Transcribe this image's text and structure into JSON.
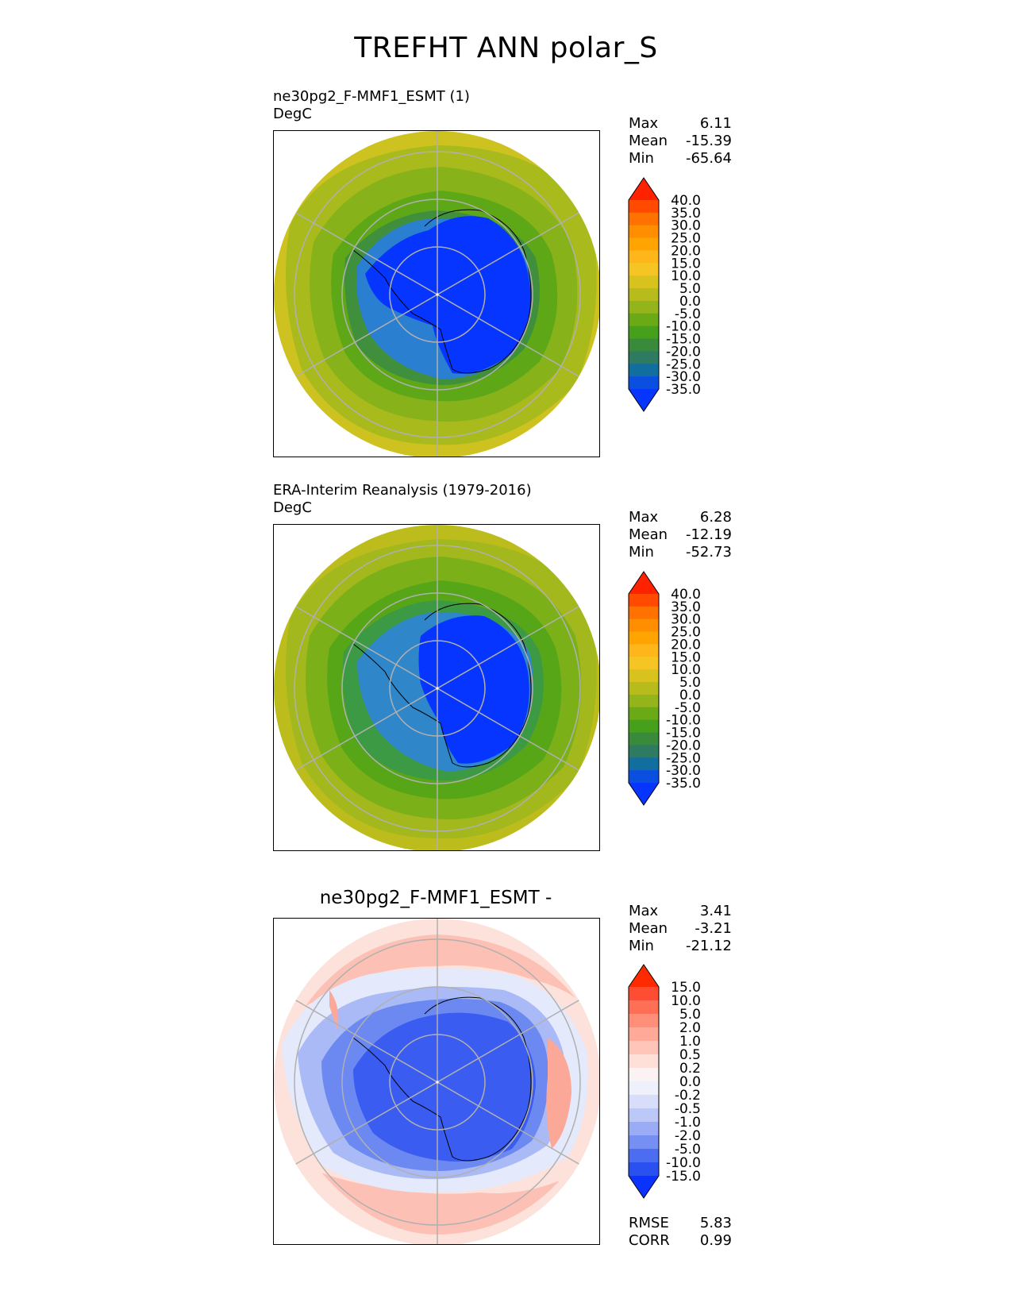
{
  "figure_title": "TREFHT ANN polar_S",
  "panels": [
    {
      "title_line1": "ne30pg2_F-MMF1_ESMT (1)",
      "title_line2": "DegC",
      "stats": {
        "max_label": "Max",
        "max": "6.11",
        "mean_label": "Mean",
        "mean": "-15.39",
        "min_label": "Min",
        "min": "-65.64"
      }
    },
    {
      "title_line1": "ERA-Interim Reanalysis (1979-2016)",
      "title_line2": "DegC",
      "stats": {
        "max_label": "Max",
        "max": "6.28",
        "mean_label": "Mean",
        "mean": "-12.19",
        "min_label": "Min",
        "min": "-52.73"
      }
    },
    {
      "title_line1": "ne30pg2_F-MMF1_ESMT -",
      "stats": {
        "max_label": "Max",
        "max": "3.41",
        "mean_label": "Mean",
        "mean": "-3.21",
        "min_label": "Min",
        "min": "-21.12"
      },
      "metrics": {
        "rmse_label": "RMSE",
        "rmse": "5.83",
        "corr_label": "CORR",
        "corr": "0.99"
      }
    }
  ],
  "chart_data": [
    {
      "type": "heatmap",
      "projection": "south-polar-stereographic",
      "title": "ne30pg2_F-MMF1_ESMT (1)",
      "units": "DegC",
      "max": 6.11,
      "mean": -15.39,
      "min": -65.64,
      "colorbar": {
        "ticks": [
          "40.0",
          "35.0",
          "30.0",
          "25.0",
          "20.0",
          "15.0",
          "10.0",
          "5.0",
          "0.0",
          "-5.0",
          "-10.0",
          "-15.0",
          "-20.0",
          "-25.0",
          "-30.0",
          "-35.0"
        ],
        "colors": [
          "#ff2200",
          "#ff4a00",
          "#ff7200",
          "#ff8f00",
          "#ffa400",
          "#ffb61a",
          "#f5c623",
          "#d8c21e",
          "#b8bb1c",
          "#93b41a",
          "#6aaa16",
          "#46a01c",
          "#3a8a3c",
          "#2f7b62",
          "#136ea0",
          "#0a4fe0",
          "#0535ff"
        ]
      },
      "field_bands": [
        {
          "value_range": [
            0,
            5
          ],
          "color": "#cdc21f"
        },
        {
          "value_range": [
            -5,
            0
          ],
          "color": "#a9ba1d"
        },
        {
          "value_range": [
            -10,
            -5
          ],
          "color": "#88b21a"
        },
        {
          "value_range": [
            -15,
            -10
          ],
          "color": "#5ea818"
        },
        {
          "value_range": [
            -20,
            -15
          ],
          "color": "#3f8f3d"
        },
        {
          "value_range": [
            -35,
            -20
          ],
          "color": "#2a7fd0"
        },
        {
          "value_range": [
            -65.64,
            -35
          ],
          "color": "#0535ff"
        }
      ]
    },
    {
      "type": "heatmap",
      "projection": "south-polar-stereographic",
      "title": "ERA-Interim Reanalysis (1979-2016)",
      "units": "DegC",
      "max": 6.28,
      "mean": -12.19,
      "min": -52.73,
      "colorbar": {
        "ticks": [
          "40.0",
          "35.0",
          "30.0",
          "25.0",
          "20.0",
          "15.0",
          "10.0",
          "5.0",
          "0.0",
          "-5.0",
          "-10.0",
          "-15.0",
          "-20.0",
          "-25.0",
          "-30.0",
          "-35.0"
        ],
        "colors": [
          "#ff2200",
          "#ff4a00",
          "#ff7200",
          "#ff8f00",
          "#ffa400",
          "#ffb61a",
          "#f5c623",
          "#d8c21e",
          "#b8bb1c",
          "#93b41a",
          "#6aaa16",
          "#46a01c",
          "#3a8a3c",
          "#2f7b62",
          "#136ea0",
          "#0a4fe0",
          "#0535ff"
        ]
      },
      "field_bands": [
        {
          "value_range": [
            0,
            5
          ],
          "color": "#bcbd1d"
        },
        {
          "value_range": [
            -5,
            0
          ],
          "color": "#a2b81c"
        },
        {
          "value_range": [
            -10,
            -5
          ],
          "color": "#7cb019"
        },
        {
          "value_range": [
            -15,
            -10
          ],
          "color": "#56a618"
        },
        {
          "value_range": [
            -20,
            -15
          ],
          "color": "#3d9a44"
        },
        {
          "value_range": [
            -35,
            -20
          ],
          "color": "#2f86c8"
        },
        {
          "value_range": [
            -52.73,
            -35
          ],
          "color": "#0535ff"
        }
      ]
    },
    {
      "type": "heatmap",
      "projection": "south-polar-stereographic",
      "title": "ne30pg2_F-MMF1_ESMT -",
      "max": 3.41,
      "mean": -3.21,
      "min": -21.12,
      "rmse": 5.83,
      "corr": 0.99,
      "colorbar": {
        "ticks": [
          "15.0",
          "10.0",
          "5.0",
          "2.0",
          "1.0",
          "0.5",
          "0.2",
          "0.0",
          "-0.2",
          "-0.5",
          "-1.0",
          "-2.0",
          "-5.0",
          "-10.0",
          "-15.0"
        ],
        "colors": [
          "#ff2a00",
          "#ff4d33",
          "#ff6f55",
          "#ff8f78",
          "#ffaa98",
          "#ffc5b8",
          "#ffe0d8",
          "#fbf3f3",
          "#eef0fb",
          "#d8defa",
          "#bcc8f8",
          "#9aacf5",
          "#7590f2",
          "#4c6df0",
          "#2b50f0",
          "#0a33ff"
        ]
      },
      "field_bands": [
        {
          "value_range": [
            0.5,
            2
          ],
          "color": "#fdc0b4"
        },
        {
          "value_range": [
            0,
            0.5
          ],
          "color": "#fde2dc"
        },
        {
          "value_range": [
            -0.5,
            0
          ],
          "color": "#e4e9fb"
        },
        {
          "value_range": [
            -2,
            -0.5
          ],
          "color": "#a9baf6"
        },
        {
          "value_range": [
            -5,
            -2
          ],
          "color": "#6c88f1"
        },
        {
          "value_range": [
            -21.12,
            -5
          ],
          "color": "#3a5cf0"
        }
      ]
    }
  ]
}
